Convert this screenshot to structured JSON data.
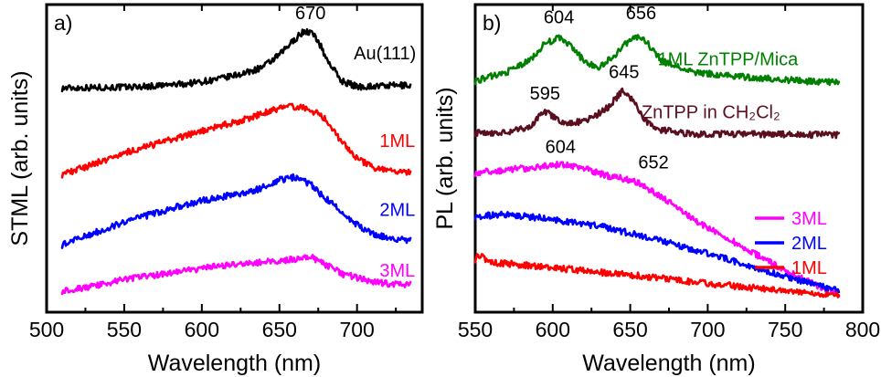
{
  "colors": {
    "Au(111)": "#000000",
    "1ML": "#ff0000",
    "2ML": "#0000ff",
    "3ML": "#ff00ff",
    "1ML ZnTPP/Mica": "#008000",
    "ZnTPP in CH2Cl2": "#5b0f1e"
  },
  "chart_data": [
    {
      "panel": "a)",
      "type": "line",
      "xlabel": "Wavelength (nm)",
      "ylabel": "STML (arb. units)",
      "xlim": [
        500,
        742
      ],
      "ylim": [
        0,
        1
      ],
      "xticks": [
        500,
        550,
        600,
        650,
        700
      ],
      "grid": false,
      "series": [
        {
          "name": "Au(111)",
          "x": [
            510,
            530,
            550,
            570,
            590,
            610,
            630,
            640,
            650,
            660,
            665,
            670,
            675,
            680,
            690,
            700,
            720,
            735
          ],
          "y": [
            0.735,
            0.737,
            0.738,
            0.742,
            0.75,
            0.765,
            0.79,
            0.81,
            0.85,
            0.905,
            0.93,
            0.93,
            0.9,
            0.84,
            0.76,
            0.74,
            0.743,
            0.745
          ]
        },
        {
          "name": "1ML",
          "x": [
            510,
            530,
            550,
            570,
            590,
            610,
            630,
            650,
            660,
            670,
            680,
            690,
            700,
            710,
            720,
            735
          ],
          "y": [
            0.435,
            0.47,
            0.51,
            0.54,
            0.57,
            0.6,
            0.63,
            0.665,
            0.67,
            0.66,
            0.625,
            0.55,
            0.49,
            0.46,
            0.445,
            0.44
          ]
        },
        {
          "name": "2ML",
          "x": [
            510,
            530,
            550,
            570,
            590,
            610,
            630,
            650,
            660,
            670,
            680,
            690,
            700,
            710,
            720,
            735
          ],
          "y": [
            0.19,
            0.23,
            0.27,
            0.3,
            0.33,
            0.355,
            0.37,
            0.415,
            0.425,
            0.4,
            0.35,
            0.305,
            0.26,
            0.23,
            0.215,
            0.205
          ]
        },
        {
          "name": "3ML",
          "x": [
            510,
            530,
            550,
            570,
            590,
            610,
            630,
            650,
            660,
            670,
            680,
            690,
            700,
            710,
            720,
            735
          ],
          "y": [
            0.03,
            0.045,
            0.07,
            0.085,
            0.1,
            0.115,
            0.125,
            0.135,
            0.14,
            0.15,
            0.12,
            0.09,
            0.075,
            0.06,
            0.055,
            0.05
          ]
        }
      ],
      "annotations": [
        {
          "text": "670",
          "x": 670,
          "y": 0.975,
          "color": "#000000"
        },
        {
          "text": "Au(111)",
          "x": 718,
          "y": 0.835,
          "color": "#000000"
        },
        {
          "text": "1ML",
          "x": 726,
          "y": 0.53,
          "color": "#ff0000"
        },
        {
          "text": "2ML",
          "x": 726,
          "y": 0.29,
          "color": "#0000ff"
        },
        {
          "text": "3ML",
          "x": 726,
          "y": 0.08,
          "color": "#ff00ff"
        }
      ]
    },
    {
      "panel": "b)",
      "type": "line",
      "xlabel": "Wavelength (nm)",
      "ylabel": "PL (arb. units)",
      "xlim": [
        550,
        800
      ],
      "ylim": [
        0,
        1
      ],
      "xticks": [
        550,
        600,
        650,
        700,
        750,
        800
      ],
      "grid": false,
      "legend": {
        "position": "bottom-right",
        "entries": [
          "3ML",
          "2ML",
          "1ML"
        ]
      },
      "series": [
        {
          "name": "1ML ZnTPP/Mica",
          "x": [
            550,
            570,
            585,
            595,
            604,
            612,
            620,
            630,
            640,
            650,
            656,
            662,
            670,
            690,
            720,
            760,
            785
          ],
          "y": [
            0.76,
            0.79,
            0.83,
            0.89,
            0.91,
            0.88,
            0.83,
            0.805,
            0.85,
            0.905,
            0.915,
            0.885,
            0.83,
            0.79,
            0.775,
            0.76,
            0.755
          ]
        },
        {
          "name": "ZnTPP in CH2Cl2",
          "x": [
            550,
            570,
            585,
            595,
            605,
            615,
            625,
            635,
            645,
            652,
            660,
            670,
            690,
            720,
            760,
            785
          ],
          "y": [
            0.58,
            0.58,
            0.6,
            0.655,
            0.615,
            0.615,
            0.63,
            0.665,
            0.725,
            0.69,
            0.62,
            0.59,
            0.575,
            0.575,
            0.573,
            0.572
          ]
        },
        {
          "name": "3ML",
          "x": [
            550,
            570,
            590,
            604,
            620,
            635,
            645,
            652,
            660,
            675,
            690,
            710,
            730,
            750,
            770,
            785
          ],
          "y": [
            0.44,
            0.45,
            0.46,
            0.47,
            0.455,
            0.43,
            0.42,
            0.415,
            0.39,
            0.34,
            0.28,
            0.22,
            0.16,
            0.1,
            0.05,
            0.02
          ]
        },
        {
          "name": "2ML",
          "x": [
            550,
            570,
            590,
            610,
            630,
            650,
            670,
            690,
            710,
            730,
            750,
            770,
            785
          ],
          "y": [
            0.29,
            0.295,
            0.285,
            0.27,
            0.255,
            0.23,
            0.205,
            0.175,
            0.145,
            0.11,
            0.08,
            0.05,
            0.03
          ]
        },
        {
          "name": "1ML",
          "x": [
            550,
            552,
            560,
            580,
            600,
            630,
            660,
            690,
            720,
            750,
            770,
            785
          ],
          "y": [
            0.14,
            0.155,
            0.13,
            0.12,
            0.11,
            0.095,
            0.08,
            0.06,
            0.045,
            0.03,
            0.02,
            0.015
          ]
        }
      ],
      "annotations": [
        {
          "text": "604",
          "x": 604,
          "y": 0.96,
          "color": "#000000"
        },
        {
          "text": "656",
          "x": 657,
          "y": 0.975,
          "color": "#000000"
        },
        {
          "text": "595",
          "x": 595,
          "y": 0.695,
          "color": "#000000"
        },
        {
          "text": "645",
          "x": 646,
          "y": 0.77,
          "color": "#000000"
        },
        {
          "text": "604",
          "x": 605,
          "y": 0.51,
          "color": "#000000"
        },
        {
          "text": "652",
          "x": 665,
          "y": 0.455,
          "color": "#000000"
        },
        {
          "text": "1ML ZnTPP/Mica",
          "x": 713,
          "y": 0.815,
          "color": "#008000"
        },
        {
          "text": "ZnTPP in CH₂Cl₂",
          "x": 702,
          "y": 0.63,
          "color": "#5b0f1e"
        }
      ]
    }
  ]
}
